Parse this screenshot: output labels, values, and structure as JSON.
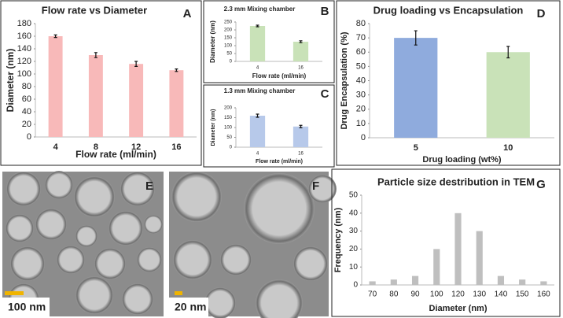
{
  "chart_data": [
    {
      "type": "bar",
      "title": "Flow rate vs Diameter",
      "panel": "A",
      "x_label": "Flow rate (ml/min)",
      "y_label": "Diameter (nm)",
      "categories": [
        "4",
        "8",
        "12",
        "16"
      ],
      "values": [
        160,
        130,
        116,
        106
      ],
      "errors": [
        2,
        4,
        4,
        2
      ],
      "color": "#f8b9b9",
      "ylim": [
        0,
        180
      ],
      "yticks": [
        0,
        20,
        40,
        60,
        80,
        100,
        120,
        140,
        160,
        180
      ]
    },
    {
      "type": "bar",
      "title": "2.3 mm Mixing chamber",
      "panel": "B",
      "x_label": "Flow rate (ml/min)",
      "y_label": "Diameter (nm)",
      "categories": [
        "4",
        "16"
      ],
      "values": [
        225,
        125
      ],
      "errors": [
        5,
        6
      ],
      "color": "#c9e2b8",
      "ylim": [
        0,
        250
      ],
      "yticks": [
        0,
        50,
        100,
        150,
        200,
        250
      ]
    },
    {
      "type": "bar",
      "title": "1.3 mm Mixing chamber",
      "panel": "C",
      "x_label": "Flow rate (ml/min)",
      "y_label": "Diameter (nm)",
      "categories": [
        "4",
        "16"
      ],
      "values": [
        160,
        105
      ],
      "errors": [
        8,
        6
      ],
      "color": "#b7c9ea",
      "ylim": [
        0,
        200
      ],
      "yticks": [
        0,
        50,
        100,
        150,
        200
      ]
    },
    {
      "type": "bar",
      "title": "Drug loading vs Encapsulation",
      "panel": "D",
      "x_label": "Drug loading (wt%)",
      "y_label": "Drug Encapsulation (%)",
      "categories": [
        "5",
        "10"
      ],
      "values": [
        70,
        60
      ],
      "errors": [
        5,
        4
      ],
      "colors": [
        "#8fabdd",
        "#c9e2b8"
      ],
      "ylim": [
        0,
        80
      ],
      "yticks": [
        0,
        10,
        20,
        30,
        40,
        50,
        60,
        70,
        80
      ]
    },
    {
      "type": "bar",
      "title": "Particle size destribution in TEM",
      "panel": "G",
      "x_label": "Diameter (nm)",
      "y_label": "Frequency (nm)",
      "categories": [
        "70",
        "80",
        "90",
        "100",
        "120",
        "130",
        "140",
        "150",
        "160"
      ],
      "values": [
        2,
        3,
        5,
        20,
        40,
        30,
        5,
        3,
        2
      ],
      "color": "#bfbfbf",
      "ylim": [
        0,
        50
      ],
      "yticks": [
        0,
        10,
        20,
        30,
        40,
        50
      ]
    }
  ],
  "images": [
    {
      "label": "E",
      "scale": "100 nm"
    },
    {
      "label": "F",
      "scale": "20 nm"
    }
  ]
}
